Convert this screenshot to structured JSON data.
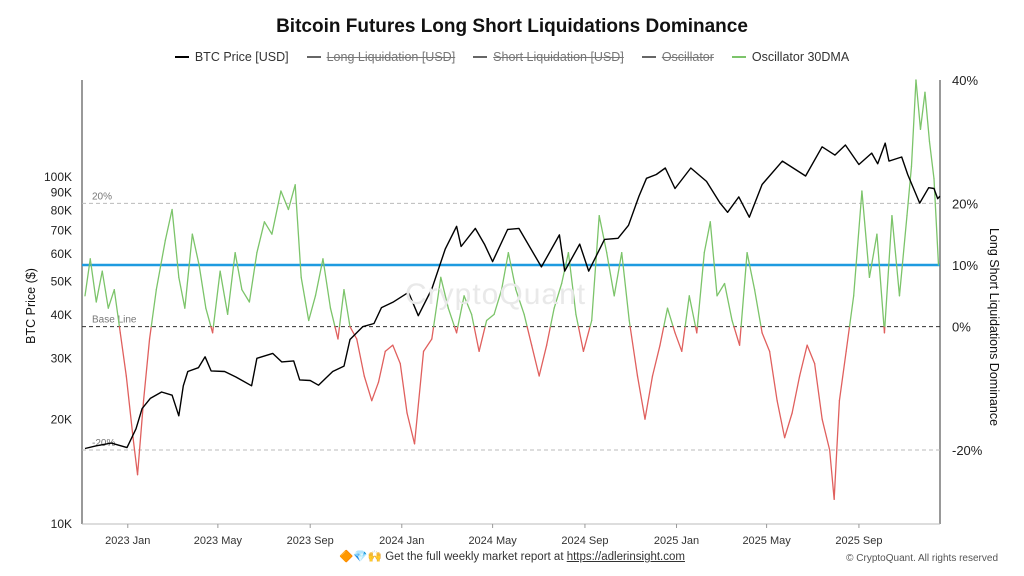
{
  "header": {
    "title": "Bitcoin Futures Long Short Liquidations Dominance"
  },
  "legend": [
    {
      "label": "BTC Price [USD]",
      "color": "#000000",
      "hidden": false
    },
    {
      "label": "Long Liquidation [USD]",
      "color": "#666666",
      "hidden": true
    },
    {
      "label": "Short Liquidation [USD]",
      "color": "#666666",
      "hidden": true
    },
    {
      "label": "Oscillator",
      "color": "#666666",
      "hidden": true
    },
    {
      "label": "Oscillator 30DMA",
      "color": "#7cc46a",
      "hidden": false
    }
  ],
  "watermark": "CryptoQuant",
  "footer": {
    "emoji": "🔶💎🙌",
    "text": "Get the full weekly market report at",
    "link": "https://adlerinsight.com"
  },
  "copyright": "© CryptoQuant. All rights reserved",
  "chart_data": {
    "type": "line",
    "title": "Bitcoin Futures Long Short Liquidations Dominance",
    "xlabel": "",
    "ylabel_left": "BTC Price ($)",
    "ylabel_right": "Long Short Liquidations Dominance",
    "x_range": [
      "2022-11-01",
      "2025-12-18"
    ],
    "x_ticks": [
      {
        "date": "2023-01-01",
        "label": "2023 Jan"
      },
      {
        "date": "2023-05-01",
        "label": "2023 May"
      },
      {
        "date": "2023-09-01",
        "label": "2023 Sep"
      },
      {
        "date": "2024-01-01",
        "label": "2024 Jan"
      },
      {
        "date": "2024-05-01",
        "label": "2024 May"
      },
      {
        "date": "2024-09-01",
        "label": "2024 Sep"
      },
      {
        "date": "2025-01-01",
        "label": "2025 Jan"
      },
      {
        "date": "2025-05-01",
        "label": "2025 May"
      },
      {
        "date": "2025-09-01",
        "label": "2025 Sep"
      }
    ],
    "left_axis": {
      "scale": "log",
      "range": [
        10000,
        190000
      ],
      "ticks": [
        {
          "value": 10000,
          "label": "10K"
        },
        {
          "value": 20000,
          "label": "20K"
        },
        {
          "value": 30000,
          "label": "30K"
        },
        {
          "value": 40000,
          "label": "40K"
        },
        {
          "value": 50000,
          "label": "50K"
        },
        {
          "value": 60000,
          "label": "60K"
        },
        {
          "value": 70000,
          "label": "70K"
        },
        {
          "value": 80000,
          "label": "80K"
        },
        {
          "value": 90000,
          "label": "90K"
        },
        {
          "value": 100000,
          "label": "100K"
        }
      ]
    },
    "right_axis": {
      "scale": "linear",
      "range": [
        -32,
        40
      ],
      "ticks": [
        {
          "value": 40,
          "label": "40%"
        },
        {
          "value": 20,
          "label": "20%"
        },
        {
          "value": 10,
          "label": "10%"
        },
        {
          "value": 0,
          "label": "0%"
        },
        {
          "value": -20,
          "label": "-20%"
        }
      ]
    },
    "reference_lines": [
      {
        "value": 20,
        "label": "20%",
        "style": "dashed"
      },
      {
        "value": 0,
        "label": "Base Line",
        "style": "dashed-dark"
      },
      {
        "value": -20,
        "label": "-20%",
        "style": "dashed"
      },
      {
        "value": 10,
        "label": "",
        "style": "solid-blue",
        "color": "#1e9be0"
      }
    ],
    "series": [
      {
        "name": "BTC Price [USD]",
        "axis": "left",
        "color": "#000000",
        "points": [
          [
            "2022-11-05",
            16500
          ],
          [
            "2022-11-20",
            16800
          ],
          [
            "2022-12-10",
            17100
          ],
          [
            "2022-12-31",
            16600
          ],
          [
            "2023-01-12",
            18800
          ],
          [
            "2023-01-20",
            21500
          ],
          [
            "2023-01-31",
            23000
          ],
          [
            "2023-02-15",
            24000
          ],
          [
            "2023-03-01",
            23500
          ],
          [
            "2023-03-10",
            20500
          ],
          [
            "2023-03-16",
            25000
          ],
          [
            "2023-03-22",
            27500
          ],
          [
            "2023-04-05",
            28200
          ],
          [
            "2023-04-14",
            30300
          ],
          [
            "2023-04-22",
            27600
          ],
          [
            "2023-05-10",
            27500
          ],
          [
            "2023-05-25",
            26500
          ],
          [
            "2023-06-15",
            25000
          ],
          [
            "2023-06-22",
            30000
          ],
          [
            "2023-07-13",
            31000
          ],
          [
            "2023-07-25",
            29300
          ],
          [
            "2023-08-10",
            29500
          ],
          [
            "2023-08-18",
            26000
          ],
          [
            "2023-09-01",
            25900
          ],
          [
            "2023-09-12",
            25100
          ],
          [
            "2023-10-01",
            27500
          ],
          [
            "2023-10-16",
            28500
          ],
          [
            "2023-10-24",
            34000
          ],
          [
            "2023-11-10",
            37000
          ],
          [
            "2023-11-25",
            37800
          ],
          [
            "2023-12-05",
            42000
          ],
          [
            "2023-12-20",
            43500
          ],
          [
            "2024-01-10",
            46500
          ],
          [
            "2024-01-23",
            39800
          ],
          [
            "2024-02-10",
            47500
          ],
          [
            "2024-02-28",
            62000
          ],
          [
            "2024-03-14",
            72000
          ],
          [
            "2024-03-20",
            63000
          ],
          [
            "2024-04-08",
            71000
          ],
          [
            "2024-04-20",
            64000
          ],
          [
            "2024-05-01",
            57000
          ],
          [
            "2024-05-21",
            70500
          ],
          [
            "2024-06-05",
            71000
          ],
          [
            "2024-07-05",
            55000
          ],
          [
            "2024-07-29",
            68000
          ],
          [
            "2024-08-05",
            53500
          ],
          [
            "2024-08-25",
            64000
          ],
          [
            "2024-09-06",
            53500
          ],
          [
            "2024-09-27",
            66000
          ],
          [
            "2024-10-15",
            66500
          ],
          [
            "2024-10-29",
            72500
          ],
          [
            "2024-11-12",
            88000
          ],
          [
            "2024-11-22",
            99000
          ],
          [
            "2024-12-05",
            101500
          ],
          [
            "2024-12-17",
            106000
          ],
          [
            "2024-12-30",
            92500
          ],
          [
            "2025-01-20",
            106000
          ],
          [
            "2025-02-10",
            97000
          ],
          [
            "2025-02-28",
            84000
          ],
          [
            "2025-03-10",
            79000
          ],
          [
            "2025-03-25",
            87500
          ],
          [
            "2025-04-08",
            76500
          ],
          [
            "2025-04-25",
            95000
          ],
          [
            "2025-05-22",
            111000
          ],
          [
            "2025-06-22",
            100500
          ],
          [
            "2025-07-14",
            122000
          ],
          [
            "2025-07-31",
            115500
          ],
          [
            "2025-08-14",
            123500
          ],
          [
            "2025-09-01",
            108500
          ],
          [
            "2025-09-18",
            117000
          ],
          [
            "2025-09-26",
            109000
          ],
          [
            "2025-10-06",
            125000
          ],
          [
            "2025-10-11",
            111000
          ],
          [
            "2025-10-28",
            114000
          ],
          [
            "2025-11-05",
            101500
          ],
          [
            "2025-11-21",
            84000
          ],
          [
            "2025-12-03",
            93000
          ],
          [
            "2025-12-10",
            92500
          ],
          [
            "2025-12-15",
            86500
          ],
          [
            "2025-12-18",
            88000
          ]
        ]
      },
      {
        "name": "Oscillator 30DMA",
        "axis": "right",
        "color_positive": "#7cc46a",
        "color_negative": "#e0605e",
        "points": [
          [
            "2022-11-05",
            5
          ],
          [
            "2022-11-12",
            11
          ],
          [
            "2022-11-20",
            4
          ],
          [
            "2022-11-28",
            9
          ],
          [
            "2022-12-06",
            3
          ],
          [
            "2022-12-14",
            6
          ],
          [
            "2022-12-22",
            -1
          ],
          [
            "2022-12-30",
            -8
          ],
          [
            "2023-01-08",
            -18
          ],
          [
            "2023-01-14",
            -24
          ],
          [
            "2023-01-22",
            -12
          ],
          [
            "2023-01-30",
            -2
          ],
          [
            "2023-02-08",
            6
          ],
          [
            "2023-02-20",
            14
          ],
          [
            "2023-03-01",
            19
          ],
          [
            "2023-03-10",
            8
          ],
          [
            "2023-03-18",
            3
          ],
          [
            "2023-03-28",
            15
          ],
          [
            "2023-04-06",
            10
          ],
          [
            "2023-04-15",
            3
          ],
          [
            "2023-04-24",
            -1
          ],
          [
            "2023-05-04",
            9
          ],
          [
            "2023-05-14",
            2
          ],
          [
            "2023-05-24",
            12
          ],
          [
            "2023-06-02",
            6
          ],
          [
            "2023-06-12",
            4
          ],
          [
            "2023-06-22",
            12
          ],
          [
            "2023-07-02",
            17
          ],
          [
            "2023-07-12",
            15
          ],
          [
            "2023-07-24",
            22
          ],
          [
            "2023-08-03",
            19
          ],
          [
            "2023-08-12",
            23
          ],
          [
            "2023-08-20",
            8
          ],
          [
            "2023-08-30",
            1
          ],
          [
            "2023-09-08",
            5
          ],
          [
            "2023-09-18",
            11
          ],
          [
            "2023-09-28",
            3
          ],
          [
            "2023-10-08",
            -2
          ],
          [
            "2023-10-16",
            6
          ],
          [
            "2023-10-24",
            0
          ],
          [
            "2023-11-02",
            -2
          ],
          [
            "2023-11-12",
            -8
          ],
          [
            "2023-11-22",
            -12
          ],
          [
            "2023-12-01",
            -9
          ],
          [
            "2023-12-10",
            -4
          ],
          [
            "2023-12-20",
            -3
          ],
          [
            "2023-12-30",
            -6
          ],
          [
            "2024-01-08",
            -14
          ],
          [
            "2024-01-18",
            -19
          ],
          [
            "2024-01-30",
            -4
          ],
          [
            "2024-02-10",
            -2
          ],
          [
            "2024-02-22",
            8
          ],
          [
            "2024-03-03",
            3
          ],
          [
            "2024-03-14",
            -1
          ],
          [
            "2024-03-24",
            5
          ],
          [
            "2024-04-03",
            2
          ],
          [
            "2024-04-13",
            -4
          ],
          [
            "2024-04-23",
            1
          ],
          [
            "2024-05-03",
            2
          ],
          [
            "2024-05-13",
            6
          ],
          [
            "2024-05-22",
            12
          ],
          [
            "2024-06-01",
            6
          ],
          [
            "2024-06-12",
            2
          ],
          [
            "2024-06-22",
            -3
          ],
          [
            "2024-07-02",
            -8
          ],
          [
            "2024-07-12",
            -3
          ],
          [
            "2024-07-22",
            3
          ],
          [
            "2024-08-01",
            7
          ],
          [
            "2024-08-10",
            12
          ],
          [
            "2024-08-20",
            2
          ],
          [
            "2024-08-30",
            -4
          ],
          [
            "2024-09-10",
            1
          ],
          [
            "2024-09-20",
            18
          ],
          [
            "2024-09-30",
            12
          ],
          [
            "2024-10-10",
            5
          ],
          [
            "2024-10-20",
            12
          ],
          [
            "2024-10-30",
            1
          ],
          [
            "2024-11-10",
            -8
          ],
          [
            "2024-11-20",
            -15
          ],
          [
            "2024-11-30",
            -8
          ],
          [
            "2024-12-10",
            -3
          ],
          [
            "2024-12-20",
            3
          ],
          [
            "2024-12-30",
            -1
          ],
          [
            "2025-01-08",
            -4
          ],
          [
            "2025-01-18",
            5
          ],
          [
            "2025-01-28",
            -1
          ],
          [
            "2025-02-07",
            12
          ],
          [
            "2025-02-15",
            17
          ],
          [
            "2025-02-24",
            5
          ],
          [
            "2025-03-06",
            7
          ],
          [
            "2025-03-16",
            1
          ],
          [
            "2025-03-26",
            -3
          ],
          [
            "2025-04-05",
            12
          ],
          [
            "2025-04-15",
            6
          ],
          [
            "2025-04-25",
            -1
          ],
          [
            "2025-05-05",
            -4
          ],
          [
            "2025-05-15",
            -12
          ],
          [
            "2025-05-25",
            -18
          ],
          [
            "2025-06-04",
            -14
          ],
          [
            "2025-06-14",
            -8
          ],
          [
            "2025-06-24",
            -3
          ],
          [
            "2025-07-04",
            -6
          ],
          [
            "2025-07-14",
            -15
          ],
          [
            "2025-07-24",
            -20
          ],
          [
            "2025-07-30",
            -28
          ],
          [
            "2025-08-06",
            -12
          ],
          [
            "2025-08-15",
            -4
          ],
          [
            "2025-08-25",
            5
          ],
          [
            "2025-09-05",
            22
          ],
          [
            "2025-09-15",
            8
          ],
          [
            "2025-09-25",
            15
          ],
          [
            "2025-10-05",
            -1
          ],
          [
            "2025-10-15",
            18
          ],
          [
            "2025-10-25",
            5
          ],
          [
            "2025-11-04",
            18
          ],
          [
            "2025-11-10",
            26
          ],
          [
            "2025-11-16",
            40
          ],
          [
            "2025-11-22",
            32
          ],
          [
            "2025-11-28",
            38
          ],
          [
            "2025-12-04",
            30
          ],
          [
            "2025-12-10",
            24
          ],
          [
            "2025-12-16",
            10
          ]
        ]
      }
    ],
    "grid": false,
    "legend_position": "top-center"
  }
}
